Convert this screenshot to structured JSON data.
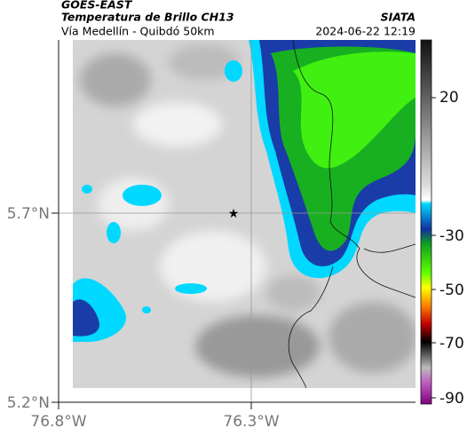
{
  "header": {
    "source": "GOES-EAST",
    "title": "Temperatura de Brillo CH13",
    "subtitle": "Vía Medellín - Quibdó 50km",
    "organization": "SIATA",
    "datetime": "2024-06-22 12:19"
  },
  "map": {
    "lat_labels": [
      "5.7°N",
      "5.2°N"
    ],
    "lon_labels": [
      "76.8°W",
      "76.3°W"
    ]
  },
  "colorbar": {
    "tick_labels": [
      "20",
      "-30",
      "-50",
      "-70",
      "-90"
    ]
  }
}
